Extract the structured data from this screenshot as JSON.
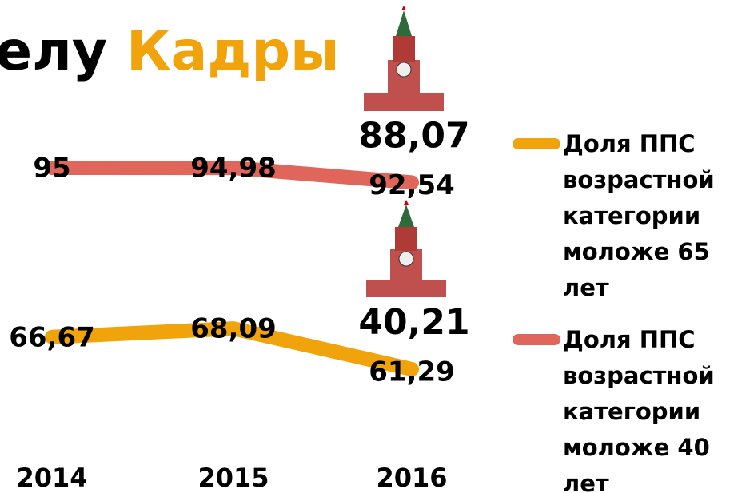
{
  "chart_data": {
    "type": "line",
    "title": [
      "елу",
      "Кадры"
    ],
    "categories": [
      "2014",
      "2015",
      "2016"
    ],
    "series": [
      {
        "name": "Доля ППС возрастной категории моложе 65 лет",
        "color": "#f0a30a",
        "values": [
          66.67,
          68.09,
          61.29
        ],
        "value_labels": [
          "66,67",
          "68,09",
          "61,29"
        ]
      },
      {
        "name": "Доля ППС возрастной категории моложе 40 лет",
        "color": "#e0665c",
        "values": [
          95,
          94.98,
          92.54
        ],
        "value_labels": [
          "95",
          "94,98",
          "92,54"
        ]
      }
    ],
    "annotations": [
      "40,21",
      "88,07"
    ],
    "legend": "right"
  }
}
